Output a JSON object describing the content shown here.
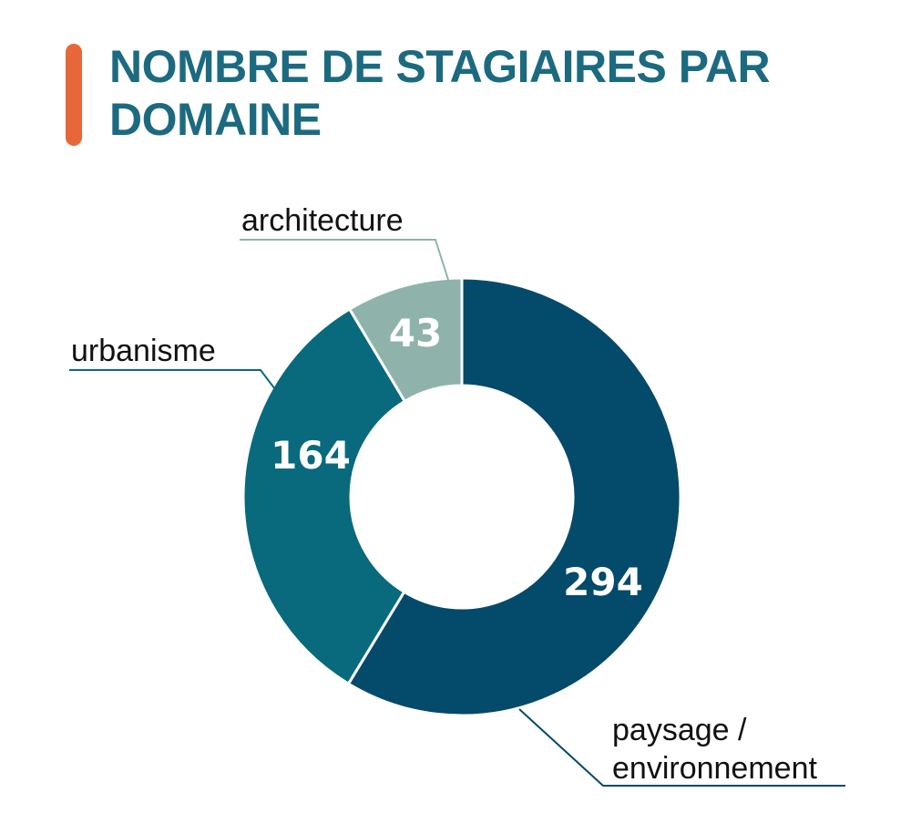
{
  "title_lines": [
    "NOMBRE DE STAGIAIRES PAR",
    "DOMAINE"
  ],
  "colors": {
    "accent": "#e8673a",
    "title": "#1c6a80",
    "paysage": "#044a6a",
    "urbanisme": "#086a7c",
    "architecture": "#8fb3aa"
  },
  "chart_data": {
    "type": "pie",
    "donut": true,
    "title": "NOMBRE DE STAGIAIRES PAR DOMAINE",
    "slices": [
      {
        "label_lines": [
          "paysage /",
          "environnement"
        ],
        "value": 294,
        "color": "#044a6a"
      },
      {
        "label_lines": [
          "urbanisme"
        ],
        "value": 164,
        "color": "#086a7c"
      },
      {
        "label_lines": [
          "architecture"
        ],
        "value": 43,
        "color": "#8fb3aa"
      }
    ]
  }
}
